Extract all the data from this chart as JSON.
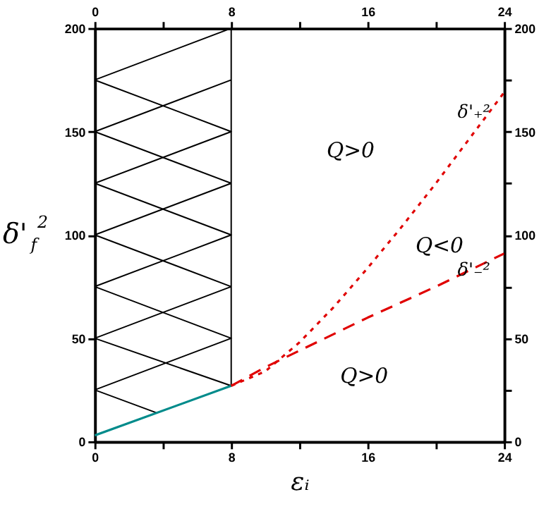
{
  "chart_data": {
    "type": "line",
    "xlabel": "εᵢ",
    "ylabel": "δ'$_{f}$$^{2}$",
    "xlim": [
      0,
      24
    ],
    "xticks": [
      0,
      {
        "value": 4,
        "label": null
      },
      8,
      {
        "value": 12,
        "label": null
      },
      16,
      {
        "value": 20,
        "label": null
      },
      24
    ],
    "x2lim": [
      0,
      24
    ],
    "x2ticks": [
      0,
      {
        "value": 4,
        "label": null
      },
      8,
      {
        "value": 12,
        "label": null
      },
      16,
      {
        "value": 20,
        "label": null
      },
      24
    ],
    "ylim": [
      0,
      200
    ],
    "yticks": [
      0,
      {
        "value": 25,
        "label": null
      },
      50,
      {
        "value": 75,
        "label": null
      },
      100,
      {
        "value": 125,
        "label": null
      },
      150,
      {
        "value": 175,
        "label": null
      },
      200
    ],
    "y2lim": [
      0,
      200
    ],
    "y2ticks": [
      0,
      {
        "value": 25,
        "label": null
      },
      50,
      {
        "value": 75,
        "label": null
      },
      100,
      {
        "value": 125,
        "label": null
      },
      150,
      {
        "value": 175,
        "label": null
      },
      200
    ],
    "grid": false,
    "marker": "none",
    "series": [
      {
        "color": "#000000",
        "line_style": "solid",
        "x": [
          8,
          8,
          0,
          8,
          0,
          8,
          0,
          8
        ],
        "values": [
          200,
          27,
          50,
          75,
          100,
          125,
          150,
          175
        ]
      },
      {
        "color": "#000000",
        "line_style": "solid",
        "x": [
          8,
          0,
          8,
          0,
          8,
          0,
          8,
          0,
          3.6
        ],
        "values": [
          200,
          175,
          150,
          125,
          100,
          75,
          50,
          25,
          14
        ]
      },
      {
        "color": "#008b8b",
        "line_style": "solid",
        "x": [
          0,
          8
        ],
        "values": [
          3,
          27
        ]
      },
      {
        "name": "δ'₊²",
        "color": "#e00000",
        "line_style": "dotted",
        "x": [
          8,
          10,
          12,
          14,
          16,
          18,
          20,
          22,
          24
        ],
        "values": [
          27,
          34,
          48,
          65,
          84,
          104,
          125,
          147,
          169
        ]
      },
      {
        "name": "δ'₋²",
        "color": "#e00000",
        "line_style": "dashed",
        "x": [
          8,
          10,
          12,
          16,
          20,
          24
        ],
        "values": [
          27,
          36,
          44,
          60,
          75,
          91
        ]
      }
    ],
    "annotations": [
      "Q>0",
      "Q<0",
      "Q>0"
    ]
  }
}
